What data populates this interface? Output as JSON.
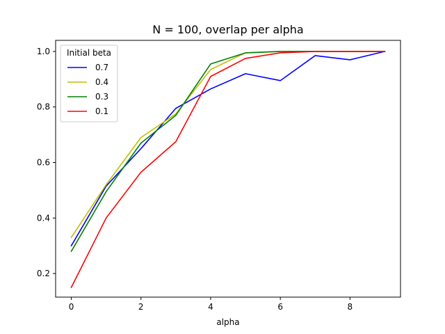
{
  "chart_data": {
    "type": "line",
    "title": "N = 100, overlap per alpha",
    "xlabel": "alpha",
    "ylabel": "",
    "x": [
      0,
      1,
      2,
      3,
      4,
      5,
      6,
      7,
      8,
      9
    ],
    "xlim": [
      -0.45,
      9.45
    ],
    "ylim": [
      0.115,
      1.04
    ],
    "xticks": [
      0,
      2,
      4,
      6,
      8
    ],
    "yticks": [
      0.2,
      0.4,
      0.6,
      0.8,
      1.0
    ],
    "ytick_labels": [
      "0.2",
      "0.4",
      "0.6",
      "0.8",
      "1.0"
    ],
    "grid": false,
    "legend": {
      "title": "Initial beta",
      "placement": "top-left"
    },
    "series": [
      {
        "name": "0.7",
        "color": "#0000ff",
        "values": [
          0.3,
          0.515,
          0.65,
          0.795,
          0.865,
          0.92,
          0.895,
          0.985,
          0.97,
          1.0
        ]
      },
      {
        "name": "0.4",
        "color": "#bfbf00",
        "values": [
          0.33,
          0.52,
          0.69,
          0.775,
          0.935,
          0.995,
          1.0,
          1.0,
          1.0,
          1.0
        ]
      },
      {
        "name": "0.3",
        "color": "#008000",
        "values": [
          0.28,
          0.495,
          0.67,
          0.77,
          0.955,
          0.995,
          1.0,
          1.0,
          1.0,
          1.0
        ]
      },
      {
        "name": "0.1",
        "color": "#ff0000",
        "values": [
          0.15,
          0.4,
          0.565,
          0.675,
          0.91,
          0.975,
          0.995,
          1.0,
          1.0,
          1.0
        ]
      }
    ]
  }
}
